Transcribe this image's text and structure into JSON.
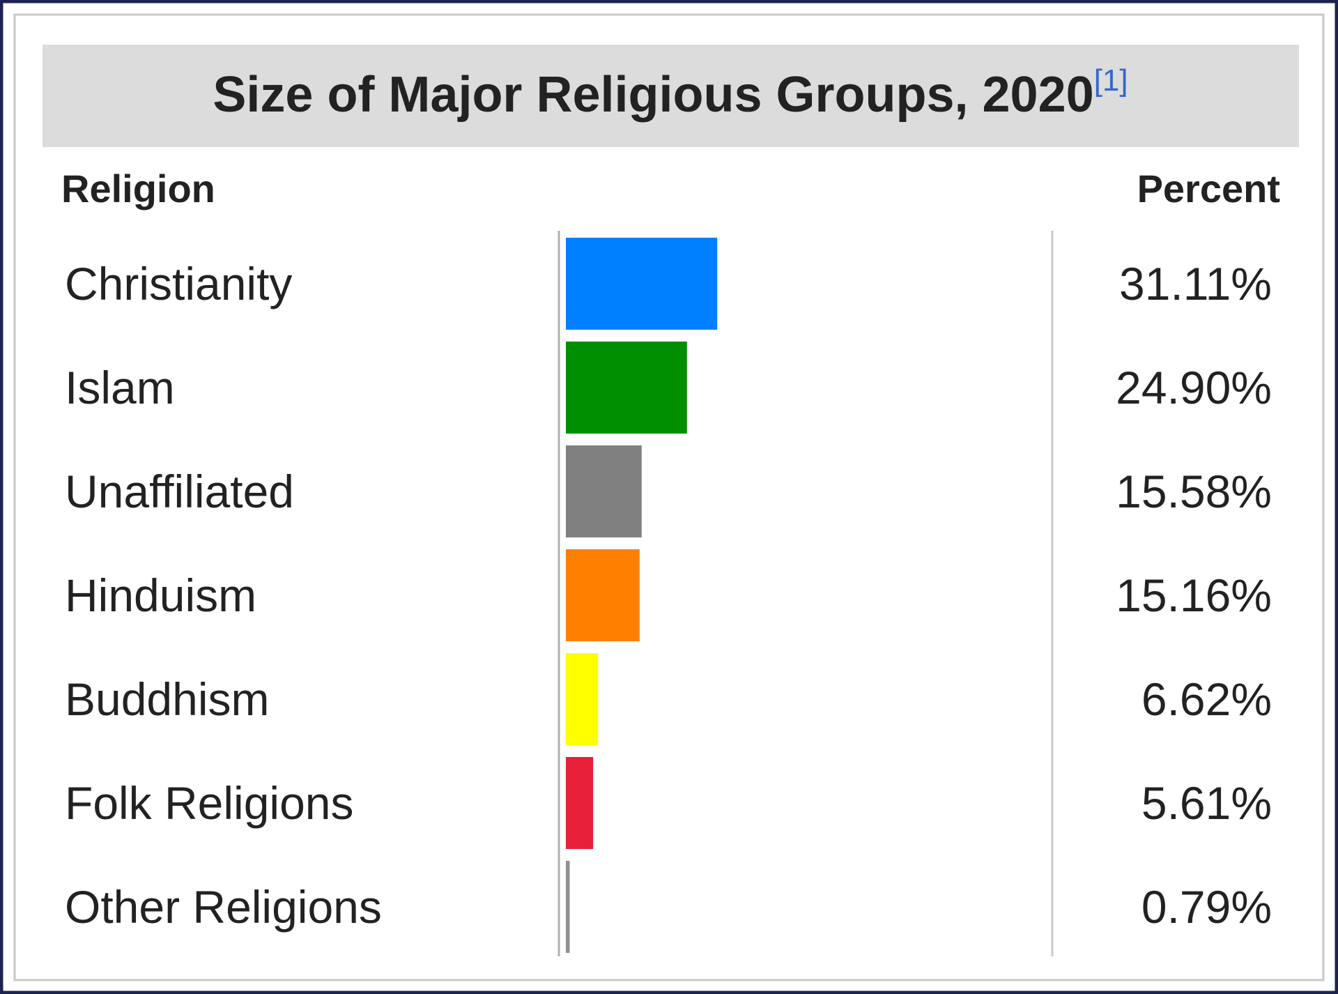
{
  "chart_data": {
    "type": "bar",
    "title": "Size of Major Religious Groups, 2020",
    "title_reference": "[1]",
    "category_header": "Religion",
    "value_header": "Percent",
    "categories": [
      "Christianity",
      "Islam",
      "Unaffiliated",
      "Hinduism",
      "Buddhism",
      "Folk Religions",
      "Other Religions"
    ],
    "values": [
      31.11,
      24.9,
      15.58,
      15.16,
      6.62,
      5.61,
      0.79
    ],
    "value_labels": [
      "31.11%",
      "24.90%",
      "15.58%",
      "15.16%",
      "6.62%",
      "5.61%",
      "0.79%"
    ],
    "colors": [
      "#0080ff",
      "#008f00",
      "#808080",
      "#ff8000",
      "#ffff00",
      "#e8203a",
      "#909090"
    ],
    "xlim": [
      0,
      100
    ]
  }
}
